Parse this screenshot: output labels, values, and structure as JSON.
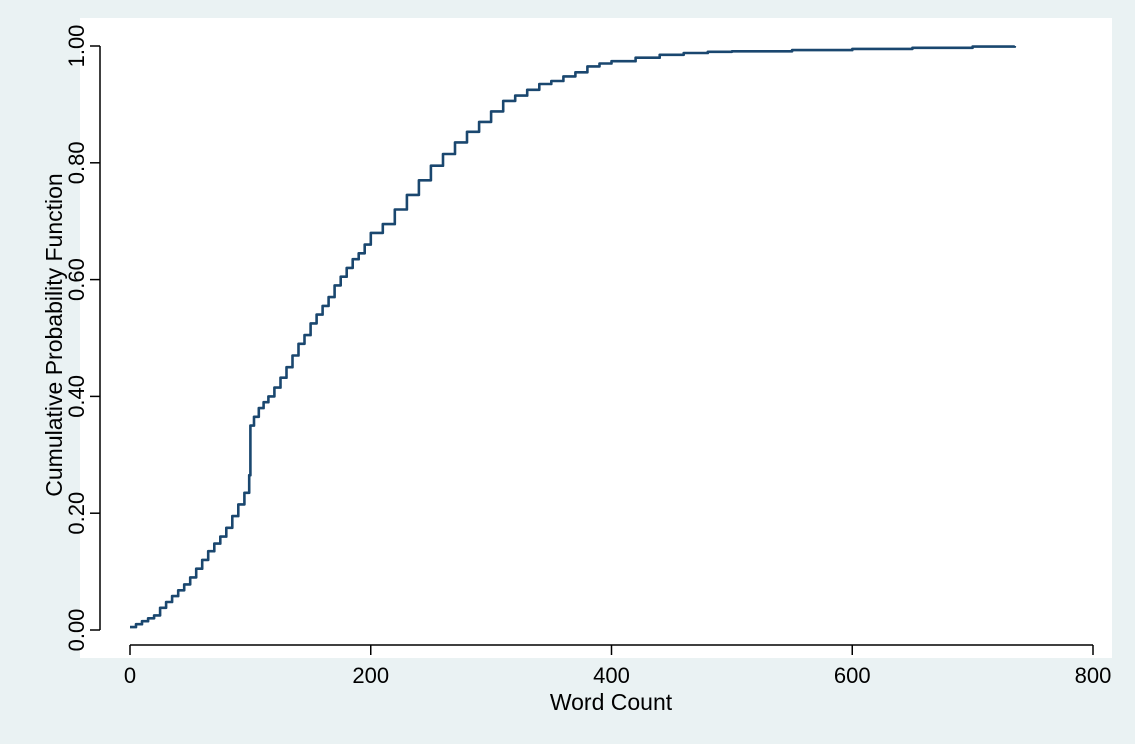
{
  "chart_data": {
    "type": "line",
    "title": "",
    "xlabel": "Word Count",
    "ylabel": "Cumulative Probability Function",
    "xlim": [
      0,
      800
    ],
    "ylim": [
      0,
      1
    ],
    "x_ticks": [
      0,
      200,
      400,
      600,
      800
    ],
    "x_tick_labels": [
      "0",
      "200",
      "400",
      "600",
      "800"
    ],
    "y_ticks": [
      0,
      0.2,
      0.4,
      0.6,
      0.8,
      1.0
    ],
    "y_tick_labels": [
      "0.00",
      "0.20",
      "0.40",
      "0.60",
      "0.80",
      "1.00"
    ],
    "grid": false,
    "legend": "none",
    "colors": {
      "outer_background": "#eaf2f3",
      "plot_background": "#ffffff",
      "line": "#1a476f",
      "axis": "#000000"
    },
    "series": [
      {
        "x": [
          0,
          5,
          10,
          15,
          20,
          25,
          30,
          35,
          40,
          45,
          50,
          55,
          60,
          65,
          70,
          75,
          80,
          85,
          90,
          95,
          99,
          100,
          103,
          107,
          111,
          115,
          120,
          125,
          130,
          135,
          140,
          145,
          150,
          155,
          160,
          165,
          170,
          175,
          180,
          185,
          190,
          195,
          200,
          210,
          220,
          230,
          240,
          250,
          260,
          270,
          280,
          290,
          300,
          310,
          320,
          330,
          340,
          350,
          360,
          370,
          380,
          390,
          400,
          420,
          440,
          460,
          480,
          500,
          550,
          600,
          650,
          700,
          735
        ],
        "y": [
          0.005,
          0.01,
          0.015,
          0.02,
          0.025,
          0.038,
          0.048,
          0.058,
          0.068,
          0.078,
          0.09,
          0.105,
          0.12,
          0.135,
          0.148,
          0.16,
          0.175,
          0.195,
          0.215,
          0.235,
          0.265,
          0.35,
          0.365,
          0.38,
          0.39,
          0.4,
          0.415,
          0.432,
          0.45,
          0.47,
          0.49,
          0.505,
          0.525,
          0.54,
          0.555,
          0.57,
          0.59,
          0.605,
          0.62,
          0.635,
          0.645,
          0.66,
          0.68,
          0.695,
          0.72,
          0.745,
          0.77,
          0.795,
          0.815,
          0.835,
          0.853,
          0.87,
          0.888,
          0.906,
          0.915,
          0.925,
          0.935,
          0.94,
          0.948,
          0.955,
          0.965,
          0.97,
          0.974,
          0.98,
          0.985,
          0.988,
          0.99,
          0.991,
          0.993,
          0.995,
          0.997,
          0.999,
          1.0
        ]
      }
    ]
  }
}
